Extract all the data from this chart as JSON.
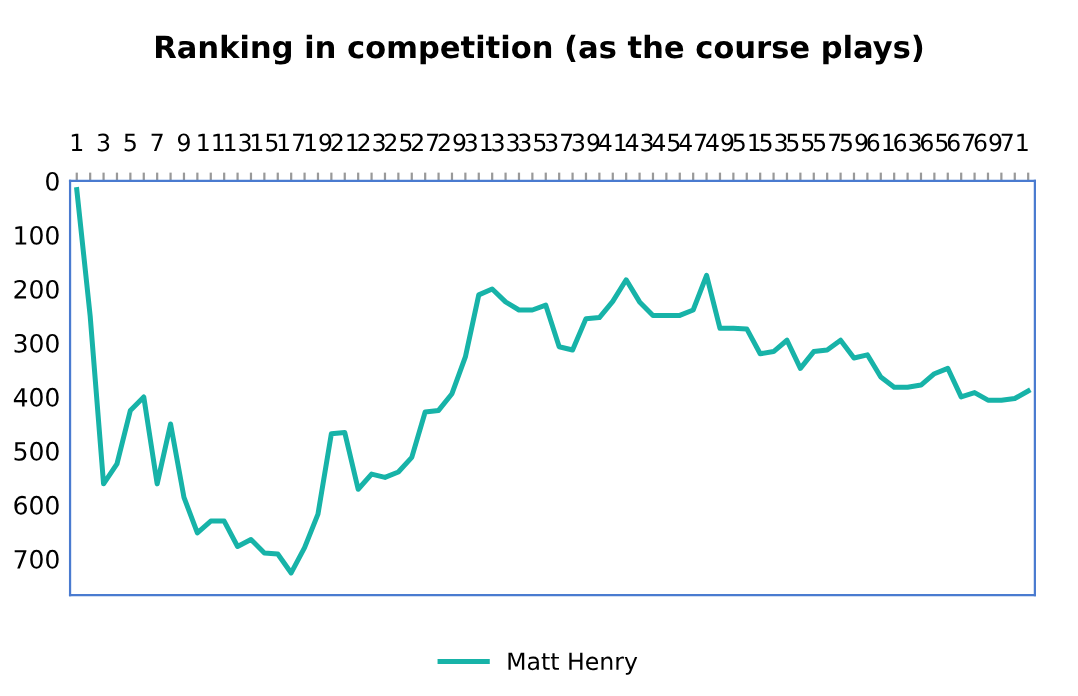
{
  "chart_data": {
    "type": "line",
    "title": "Ranking in competition (as the course plays)",
    "categories": [
      "1",
      null,
      "3",
      null,
      "5",
      null,
      "7",
      null,
      "9",
      null,
      "11",
      null,
      "13",
      null,
      "15",
      null,
      "17",
      null,
      "19",
      null,
      "21",
      null,
      "23",
      null,
      "25",
      null,
      "27",
      null,
      "29",
      null,
      "31",
      null,
      "33",
      null,
      "35",
      null,
      "37",
      null,
      "39",
      null,
      "41",
      null,
      "43",
      null,
      "45",
      null,
      "47",
      null,
      "49",
      null,
      "51",
      null,
      "53",
      null,
      "55",
      null,
      "57",
      null,
      "59",
      null,
      "61",
      null,
      "63",
      null,
      "65",
      null,
      "67",
      null,
      "69",
      null,
      "71",
      null
    ],
    "series": [
      {
        "name": "Matt Henry",
        "color": "#17b3a8",
        "values": [
          16,
          250,
          561,
          524,
          425,
          400,
          561,
          450,
          586,
          652,
          630,
          630,
          677,
          664,
          689,
          691,
          726,
          679,
          617,
          468,
          466,
          571,
          543,
          549,
          539,
          512,
          428,
          425,
          394,
          326,
          211,
          200,
          224,
          239,
          239,
          230,
          307,
          313,
          255,
          253,
          223,
          183,
          224,
          249,
          249,
          249,
          239,
          175,
          273,
          273,
          274,
          320,
          316,
          295,
          347,
          316,
          313,
          295,
          328,
          322,
          363,
          382,
          382,
          378,
          357,
          347,
          400,
          392,
          406,
          406,
          403,
          389
        ]
      }
    ],
    "ylim": [
      767,
      0
    ],
    "yticks": [
      0,
      100,
      200,
      300,
      400,
      500,
      600,
      700
    ],
    "grid": false,
    "legend": "bottom",
    "marker": "none",
    "line_style": "solid"
  }
}
